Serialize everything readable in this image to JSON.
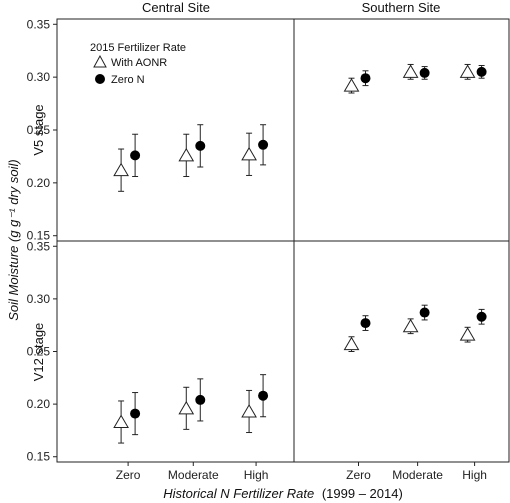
{
  "chart_data": {
    "type": "scatter",
    "facets": {
      "columns": [
        "Central Site",
        "Southern Site"
      ],
      "rows": [
        "V5 stage",
        "V12 stage"
      ]
    },
    "categories": [
      "Zero",
      "Moderate",
      "High"
    ],
    "xlabel_main": "Historical N Fertilizer Rate",
    "xlabel_years": "(1999 – 2014)",
    "ylabel": "Soil Moisture (g g⁻¹ dry soil)",
    "ylim": [
      0.145,
      0.355
    ],
    "yticks": [
      "0.15",
      "0.20",
      "0.25",
      "0.30",
      "0.35"
    ],
    "ytick_values": [
      0.15,
      0.2,
      0.25,
      0.3,
      0.35
    ],
    "legend": {
      "title": "2015 Fertilizer Rate",
      "placement": "top-left",
      "items": [
        "With AONR",
        "Zero N"
      ]
    },
    "series_markers": {
      "With AONR": "open-triangle",
      "Zero N": "filled-circle"
    },
    "panels": [
      {
        "row": "V5 stage",
        "column": "Central Site",
        "series": [
          {
            "name": "With AONR",
            "values": [
              0.212,
              0.226,
              0.227
            ],
            "errors": [
              0.02,
              0.02,
              0.02
            ]
          },
          {
            "name": "Zero N",
            "values": [
              0.226,
              0.235,
              0.236
            ],
            "errors": [
              0.02,
              0.02,
              0.019
            ]
          }
        ]
      },
      {
        "row": "V5 stage",
        "column": "Southern Site",
        "series": [
          {
            "name": "With AONR",
            "values": [
              0.292,
              0.305,
              0.305
            ],
            "errors": [
              0.007,
              0.007,
              0.007
            ]
          },
          {
            "name": "Zero N",
            "values": [
              0.299,
              0.304,
              0.305
            ],
            "errors": [
              0.007,
              0.006,
              0.006
            ]
          }
        ]
      },
      {
        "row": "V12 stage",
        "column": "Central Site",
        "series": [
          {
            "name": "With AONR",
            "values": [
              0.183,
              0.196,
              0.193
            ],
            "errors": [
              0.02,
              0.02,
              0.02
            ]
          },
          {
            "name": "Zero N",
            "values": [
              0.191,
              0.204,
              0.208
            ],
            "errors": [
              0.02,
              0.02,
              0.02
            ]
          }
        ]
      },
      {
        "row": "V12 stage",
        "column": "Southern Site",
        "series": [
          {
            "name": "With AONR",
            "values": [
              0.257,
              0.274,
              0.266
            ],
            "errors": [
              0.007,
              0.007,
              0.007
            ]
          },
          {
            "name": "Zero N",
            "values": [
              0.277,
              0.287,
              0.283
            ],
            "errors": [
              0.007,
              0.007,
              0.007
            ]
          }
        ]
      }
    ]
  }
}
